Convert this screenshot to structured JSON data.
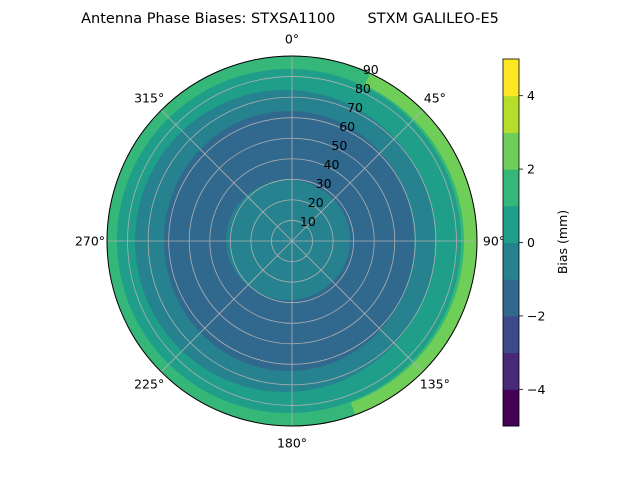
{
  "chart_data": {
    "type": "polar-contour",
    "title": "Antenna Phase Biases: STXSA1100       STXM GALILEO-E5",
    "angular_ticks": [
      "0°",
      "45°",
      "90°",
      "135°",
      "180°",
      "225°",
      "270°",
      "315°"
    ],
    "radial_ticks": [
      "10",
      "20",
      "30",
      "40",
      "50",
      "60",
      "70",
      "80",
      "90"
    ],
    "radial_range": [
      0,
      90
    ],
    "grid": true,
    "colorbar": {
      "label": "Bias (mm)",
      "range": [
        -5,
        5
      ],
      "levels": [
        -5,
        -4,
        -3,
        -2,
        -1,
        0,
        1,
        2,
        3,
        4,
        5
      ],
      "tick_labels": [
        "−4",
        "−2",
        "0",
        "2",
        "4"
      ],
      "colors": [
        "#440154",
        "#482878",
        "#3e4989",
        "#31688e",
        "#26828e",
        "#1f9e89",
        "#35b779",
        "#6ece58",
        "#b5de2b",
        "#fde725"
      ],
      "placement": "right"
    },
    "contours": [
      {
        "level": 1.5,
        "color": "#35b779",
        "shape": "outer ring, widest toward east"
      },
      {
        "level": 0.5,
        "color": "#1f9e89",
        "shape": "ring"
      },
      {
        "level": -0.5,
        "color": "#26828e",
        "shape": "ring"
      },
      {
        "level": -1.5,
        "color": "#31688e",
        "shape": "central region with slight east offset"
      },
      {
        "level": -0.5,
        "color": "#26828e",
        "shape": "inner disc near zenith"
      }
    ],
    "edge_band": {
      "level": 2.5,
      "color": "#6ece58",
      "sector_deg": [
        25,
        160
      ]
    }
  }
}
